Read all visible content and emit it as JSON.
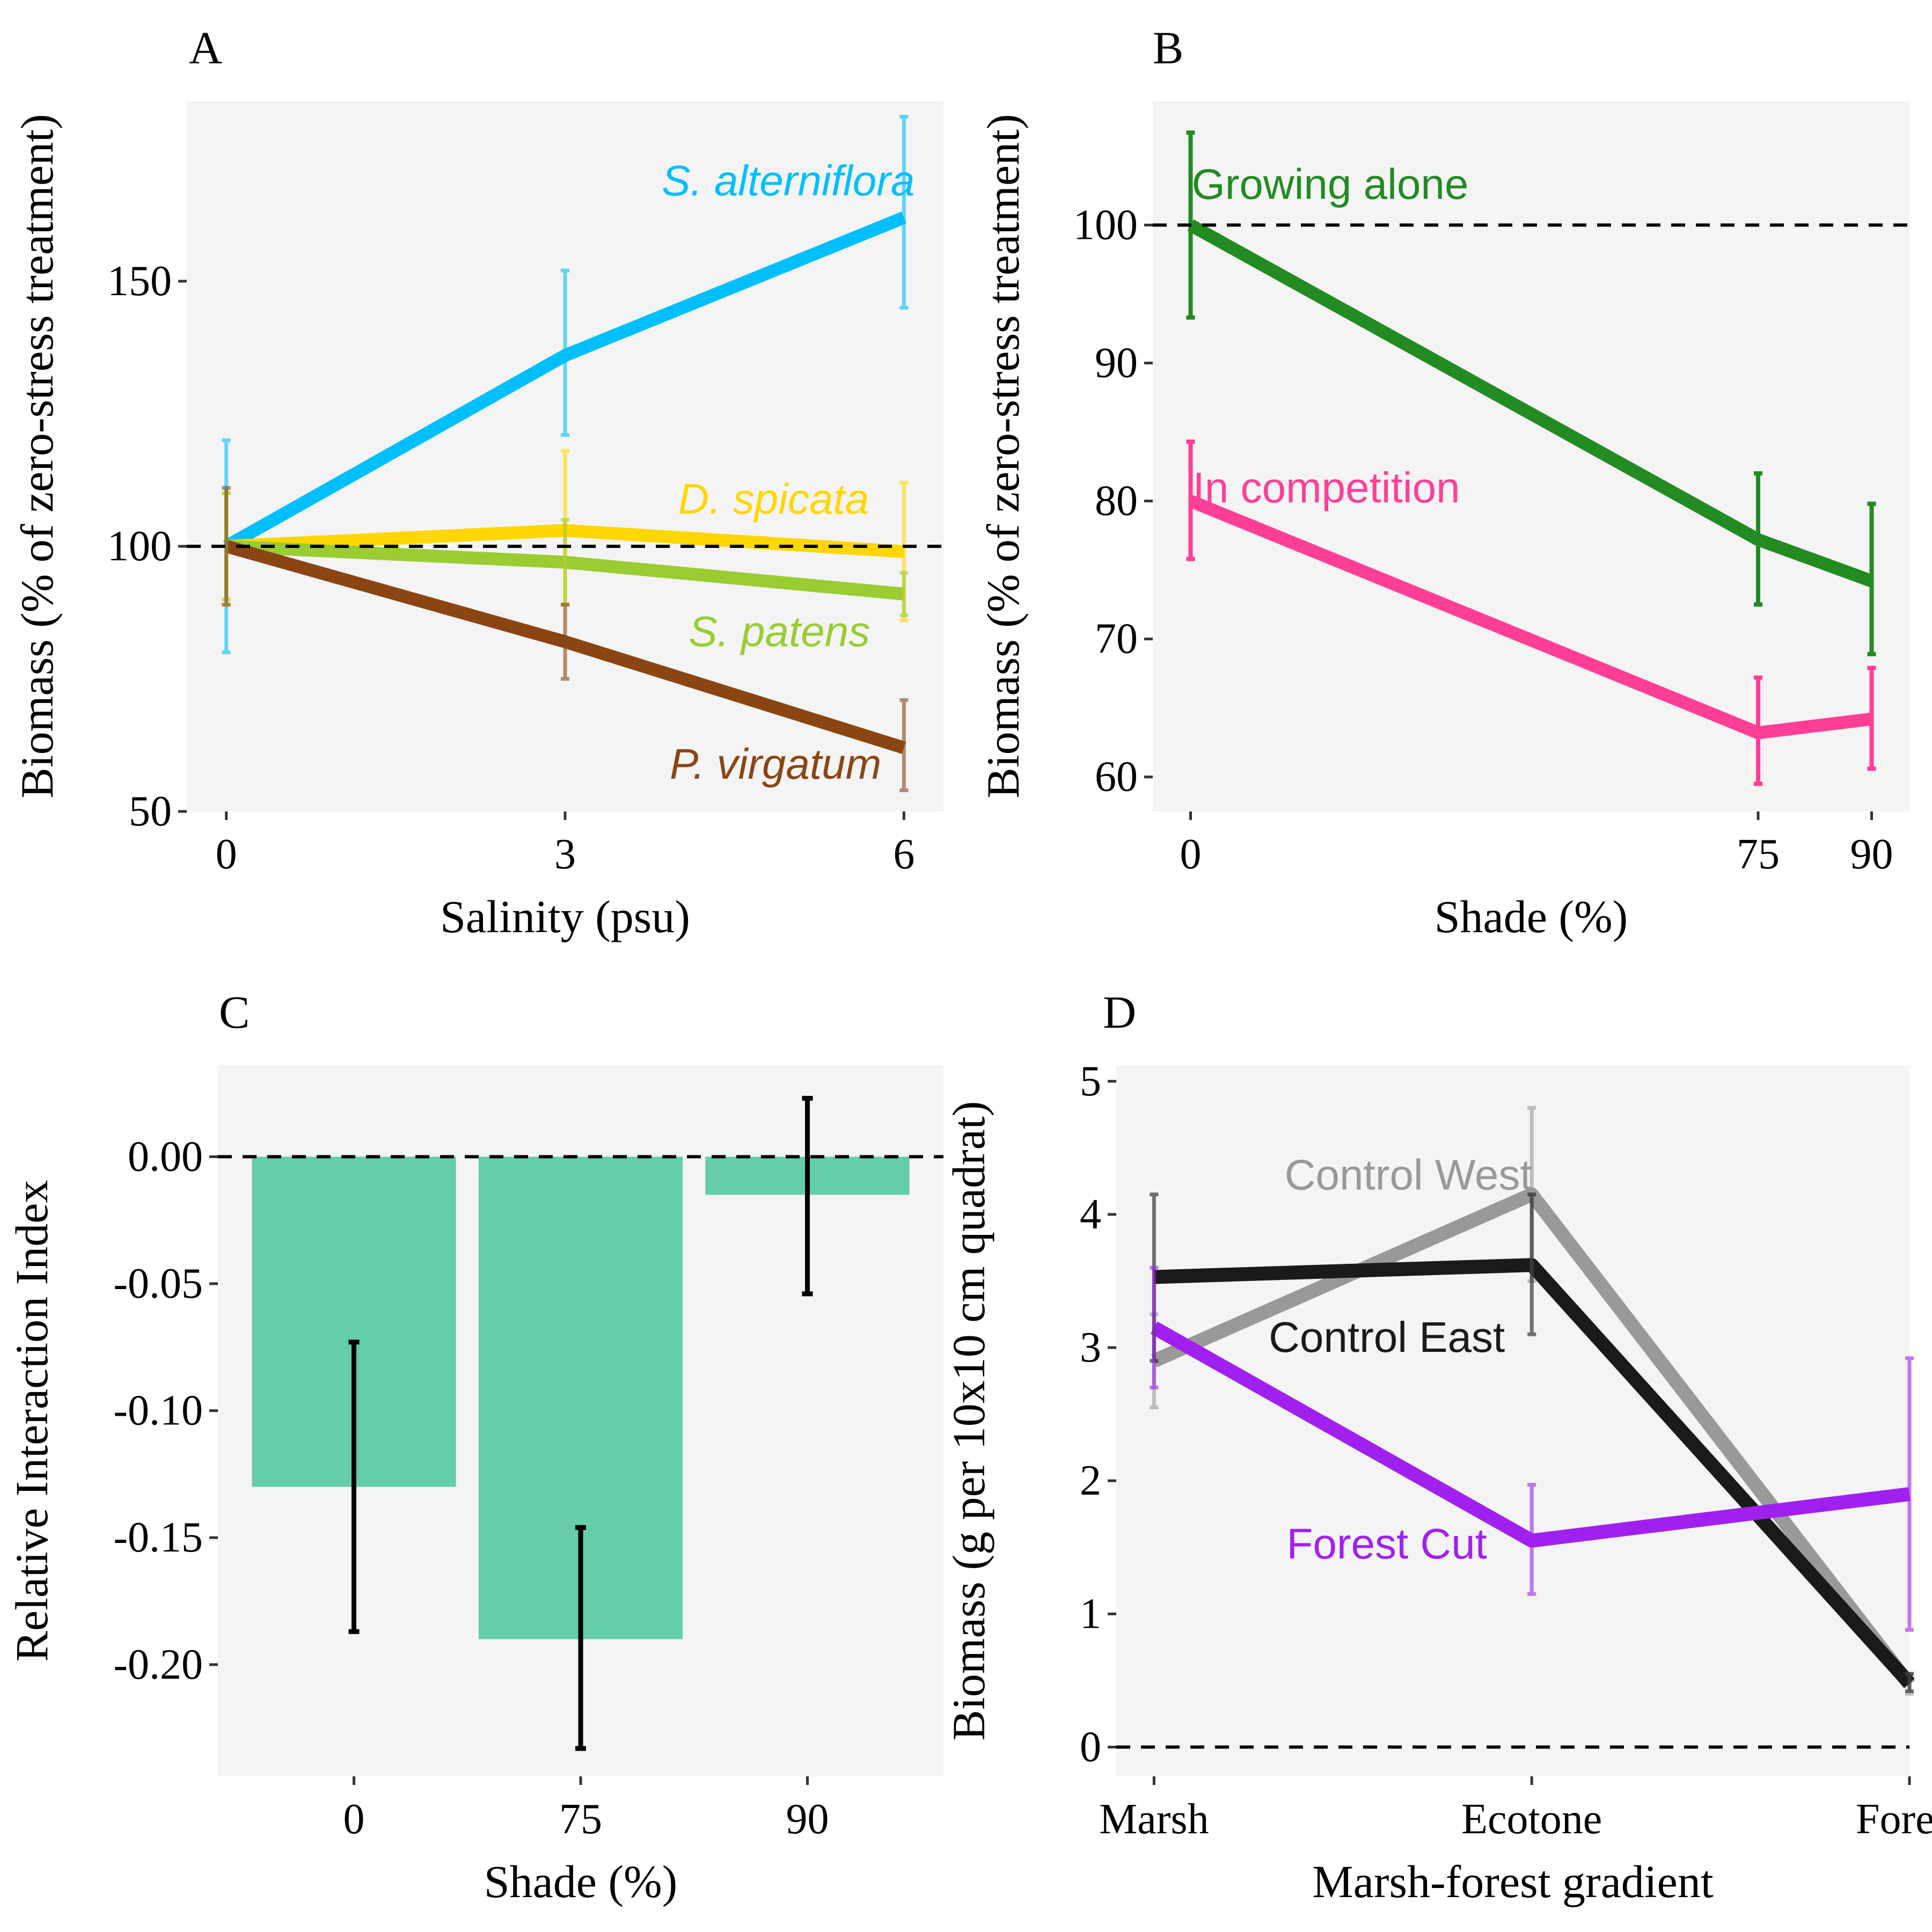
{
  "chart_data": [
    {
      "panel": "A",
      "type": "line",
      "xlabel": "Salinity (psu)",
      "ylabel": "Biomass (% of zero-stress treatment)",
      "x": [
        0,
        3,
        6
      ],
      "xticks": [
        "0",
        "3",
        "6"
      ],
      "yticks": [
        "50",
        "100",
        "150"
      ],
      "xlim": [
        -0.35,
        6.35
      ],
      "ylim": [
        50,
        184
      ],
      "reference_line": 100,
      "grid": false,
      "series": [
        {
          "name": "S. alterniflora",
          "color": "#00BFFF",
          "values": [
            100,
            136,
            162
          ],
          "err_low": [
            80,
            121,
            145
          ],
          "err_high": [
            120,
            152,
            181
          ],
          "label_x": 6,
          "label_y": 169
        },
        {
          "name": "D. spicata",
          "color": "#FFD700",
          "values": [
            100,
            103,
            99
          ],
          "err_low": [
            89,
            89,
            86
          ],
          "err_high": [
            110,
            118,
            112
          ],
          "label_x": 5.7,
          "label_y": 109
        },
        {
          "name": "S. patens",
          "color": "#9ACD32",
          "values": [
            100,
            97,
            91
          ],
          "err_low": [
            90,
            89,
            87
          ],
          "err_high": [
            110,
            105,
            95
          ],
          "label_x": 5.7,
          "label_y": 84
        },
        {
          "name": "P. virgatum",
          "color": "#8B4513",
          "values": [
            100,
            82,
            62
          ],
          "err_low": [
            89,
            75,
            54
          ],
          "err_high": [
            111,
            89,
            71
          ],
          "label_x": 5.8,
          "label_y": 59
        }
      ]
    },
    {
      "panel": "B",
      "type": "line",
      "xlabel": "Shade (%)",
      "ylabel": "Biomass (% of zero-stress treatment)",
      "x": [
        0,
        75,
        90
      ],
      "xticks": [
        "0",
        "75",
        "90"
      ],
      "yticks": [
        "60",
        "70",
        "80",
        "90",
        "100"
      ],
      "xlim": [
        -5,
        95
      ],
      "ylim": [
        57.5,
        109
      ],
      "reference_line": 100,
      "grid": false,
      "series": [
        {
          "name": "Growing alone",
          "color": "#228B22",
          "values": [
            100,
            77.2,
            74.2
          ],
          "err_low": [
            93.3,
            72.5,
            68.9
          ],
          "err_high": [
            106.7,
            82,
            79.8
          ],
          "label_x": 0,
          "label_y": 103
        },
        {
          "name": "In competition",
          "color": "#FF3E96",
          "values": [
            80,
            63.2,
            64.2
          ],
          "err_low": [
            75.8,
            59.5,
            60.6
          ],
          "err_high": [
            84.3,
            67.2,
            67.9
          ],
          "label_x": 0,
          "label_y": 81
        }
      ]
    },
    {
      "panel": "C",
      "type": "bar",
      "xlabel": "Shade (%)",
      "ylabel": "Relative Interaction Index",
      "categories": [
        "0",
        "75",
        "90"
      ],
      "values": [
        -0.13,
        -0.19,
        -0.015
      ],
      "err_low": [
        -0.187,
        -0.233,
        -0.054
      ],
      "err_high": [
        -0.073,
        -0.146,
        0.023
      ],
      "yticks": [
        "-0.20",
        "-0.15",
        "-0.10",
        "-0.05",
        "0.00"
      ],
      "ytick_values": [
        -0.2,
        -0.15,
        -0.1,
        -0.05,
        0
      ],
      "ylim": [
        -0.244,
        0.036
      ],
      "reference_line": 0,
      "bar_color": "#66CDAA",
      "grid": false
    },
    {
      "panel": "D",
      "type": "line",
      "xlabel": "Marsh-forest gradient",
      "ylabel": "Biomass (g per 10x10 cm quadrat)",
      "categories": [
        "Marsh",
        "Ecotone",
        "Forest"
      ],
      "yticks": [
        "0",
        "1",
        "2",
        "3",
        "4",
        "5"
      ],
      "ylim": [
        -0.22,
        5.12
      ],
      "reference_line": 0,
      "grid": false,
      "series": [
        {
          "name": "Control West",
          "color": "#999999",
          "values": [
            2.9,
            4.15,
            0.47
          ],
          "err_low": [
            2.55,
            3.5,
            0.4
          ],
          "err_high": [
            3.25,
            4.8,
            0.55
          ],
          "label_x": 1,
          "label_y": 4.3
        },
        {
          "name": "Control East",
          "color": "#1a1a1a",
          "values": [
            3.53,
            3.62,
            0.48
          ],
          "err_low": [
            2.9,
            3.1,
            0.42
          ],
          "err_high": [
            4.15,
            4.15,
            0.55
          ],
          "label_x": 1,
          "label_y": 3.08
        },
        {
          "name": "Forest Cut",
          "color": "#A020F0",
          "values": [
            3.15,
            1.55,
            1.9
          ],
          "err_low": [
            2.7,
            1.15,
            0.88
          ],
          "err_high": [
            3.6,
            1.97,
            2.92
          ],
          "label_x": 1,
          "label_y": 1.53
        }
      ]
    }
  ]
}
